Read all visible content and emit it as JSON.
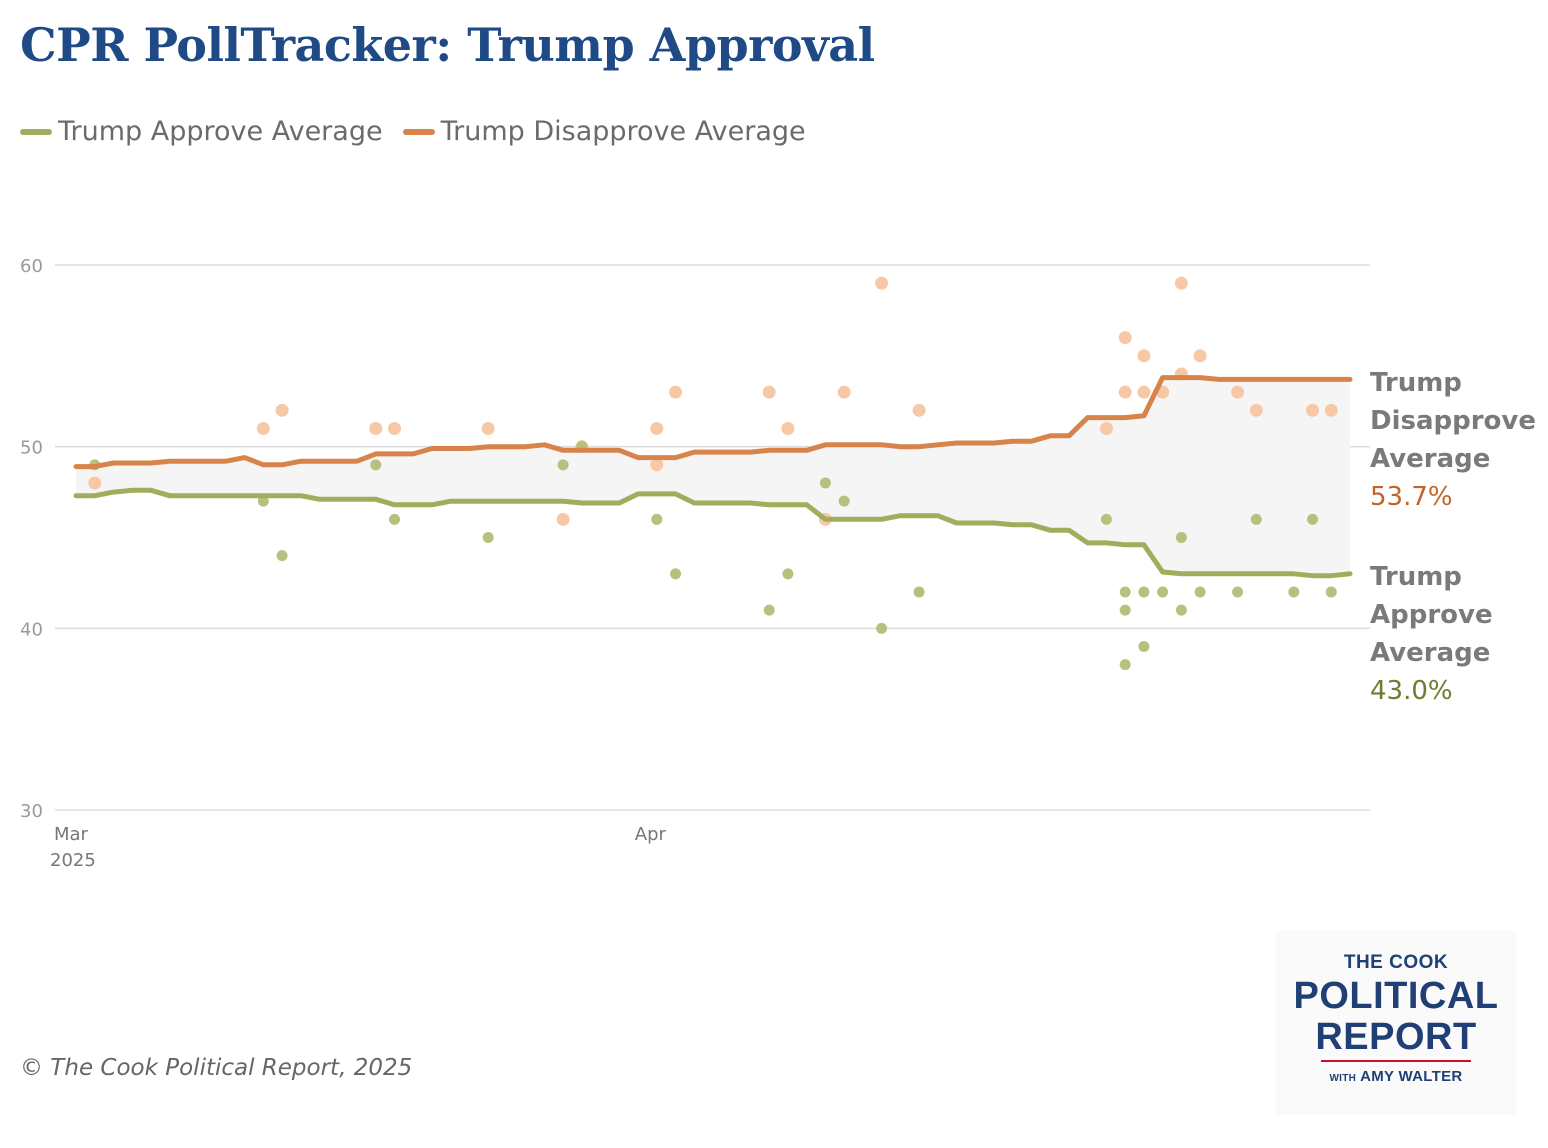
{
  "title": "CPR PollTracker: Trump Approval",
  "footer": "© The Cook Political Report, 2025",
  "logo": {
    "line1": "THE COOK",
    "line2": "POLITICAL",
    "line3": "REPORT",
    "with": "WITH",
    "name": "AMY WALTER"
  },
  "colors": {
    "approve": "#a0ad5d",
    "disapprove": "#d7834a",
    "approve_point": "#b7c17e",
    "disapprove_point": "#f7c8a5",
    "band": "#f5f5f5",
    "grid": "#dddddd",
    "title": "#1f4a86"
  },
  "end_labels": {
    "disapprove": {
      "name": "Trump Disapprove Average",
      "value": "53.7%"
    },
    "approve": {
      "name": "Trump Approve Average",
      "value": "43.0%"
    }
  },
  "chart_data": {
    "type": "line",
    "title": "CPR PollTracker: Trump Approval",
    "x_axis": {
      "ticks": [
        {
          "label": "Mar",
          "sublabel": "2025",
          "date": "2025-03-01"
        },
        {
          "label": "Apr",
          "date": "2025-04-01"
        }
      ],
      "range": [
        "2025-03-01",
        "2025-05-08"
      ]
    },
    "y_axis": {
      "ticks": [
        30,
        40,
        50,
        60
      ],
      "range": [
        30,
        60
      ]
    },
    "grid": true,
    "legend": "top-left",
    "series": [
      {
        "name": "Trump Approve Average",
        "x": [
          "2025-03-01",
          "2025-03-02",
          "2025-03-03",
          "2025-03-04",
          "2025-03-05",
          "2025-03-06",
          "2025-03-07",
          "2025-03-08",
          "2025-03-09",
          "2025-03-10",
          "2025-03-11",
          "2025-03-12",
          "2025-03-13",
          "2025-03-14",
          "2025-03-15",
          "2025-03-16",
          "2025-03-17",
          "2025-03-18",
          "2025-03-19",
          "2025-03-20",
          "2025-03-21",
          "2025-03-22",
          "2025-03-23",
          "2025-03-24",
          "2025-03-25",
          "2025-03-26",
          "2025-03-27",
          "2025-03-28",
          "2025-03-29",
          "2025-03-30",
          "2025-03-31",
          "2025-04-01",
          "2025-04-02",
          "2025-04-03",
          "2025-04-04",
          "2025-04-05",
          "2025-04-06",
          "2025-04-07",
          "2025-04-08",
          "2025-04-09",
          "2025-04-10",
          "2025-04-11",
          "2025-04-12",
          "2025-04-13",
          "2025-04-14",
          "2025-04-15",
          "2025-04-16",
          "2025-04-17",
          "2025-04-18",
          "2025-04-19",
          "2025-04-20",
          "2025-04-21",
          "2025-04-22",
          "2025-04-23",
          "2025-04-24",
          "2025-04-25",
          "2025-04-26",
          "2025-04-27",
          "2025-04-28",
          "2025-04-29",
          "2025-04-30",
          "2025-05-01",
          "2025-05-02",
          "2025-05-03",
          "2025-05-04",
          "2025-05-05",
          "2025-05-06",
          "2025-05-07",
          "2025-05-08"
        ],
        "values": [
          47.3,
          47.3,
          47.5,
          47.6,
          47.6,
          47.3,
          47.3,
          47.3,
          47.3,
          47.3,
          47.3,
          47.3,
          47.3,
          47.1,
          47.1,
          47.1,
          47.1,
          46.8,
          46.8,
          46.8,
          47.0,
          47.0,
          47.0,
          47.0,
          47.0,
          47.0,
          47.0,
          46.9,
          46.9,
          46.9,
          47.4,
          47.4,
          47.4,
          46.9,
          46.9,
          46.9,
          46.9,
          46.8,
          46.8,
          46.8,
          46.0,
          46.0,
          46.0,
          46.0,
          46.2,
          46.2,
          46.2,
          45.8,
          45.8,
          45.8,
          45.7,
          45.7,
          45.4,
          45.4,
          44.7,
          44.7,
          44.6,
          44.6,
          43.1,
          43.0,
          43.0,
          43.0,
          43.0,
          43.0,
          43.0,
          43.0,
          42.9,
          42.9,
          43.0
        ]
      },
      {
        "name": "Trump Disapprove Average",
        "x": [
          "2025-03-01",
          "2025-03-02",
          "2025-03-03",
          "2025-03-04",
          "2025-03-05",
          "2025-03-06",
          "2025-03-07",
          "2025-03-08",
          "2025-03-09",
          "2025-03-10",
          "2025-03-11",
          "2025-03-12",
          "2025-03-13",
          "2025-03-14",
          "2025-03-15",
          "2025-03-16",
          "2025-03-17",
          "2025-03-18",
          "2025-03-19",
          "2025-03-20",
          "2025-03-21",
          "2025-03-22",
          "2025-03-23",
          "2025-03-24",
          "2025-03-25",
          "2025-03-26",
          "2025-03-27",
          "2025-03-28",
          "2025-03-29",
          "2025-03-30",
          "2025-03-31",
          "2025-04-01",
          "2025-04-02",
          "2025-04-03",
          "2025-04-04",
          "2025-04-05",
          "2025-04-06",
          "2025-04-07",
          "2025-04-08",
          "2025-04-09",
          "2025-04-10",
          "2025-04-11",
          "2025-04-12",
          "2025-04-13",
          "2025-04-14",
          "2025-04-15",
          "2025-04-16",
          "2025-04-17",
          "2025-04-18",
          "2025-04-19",
          "2025-04-20",
          "2025-04-21",
          "2025-04-22",
          "2025-04-23",
          "2025-04-24",
          "2025-04-25",
          "2025-04-26",
          "2025-04-27",
          "2025-04-28",
          "2025-04-29",
          "2025-04-30",
          "2025-05-01",
          "2025-05-02",
          "2025-05-03",
          "2025-05-04",
          "2025-05-05",
          "2025-05-06",
          "2025-05-07",
          "2025-05-08"
        ],
        "values": [
          48.9,
          48.9,
          49.1,
          49.1,
          49.1,
          49.2,
          49.2,
          49.2,
          49.2,
          49.4,
          49.0,
          49.0,
          49.2,
          49.2,
          49.2,
          49.2,
          49.6,
          49.6,
          49.6,
          49.9,
          49.9,
          49.9,
          50.0,
          50.0,
          50.0,
          50.1,
          49.8,
          49.8,
          49.8,
          49.8,
          49.4,
          49.4,
          49.4,
          49.7,
          49.7,
          49.7,
          49.7,
          49.8,
          49.8,
          49.8,
          50.1,
          50.1,
          50.1,
          50.1,
          50.0,
          50.0,
          50.1,
          50.2,
          50.2,
          50.2,
          50.3,
          50.3,
          50.6,
          50.6,
          51.6,
          51.6,
          51.6,
          51.7,
          53.8,
          53.8,
          53.8,
          53.7,
          53.7,
          53.7,
          53.7,
          53.7,
          53.7,
          53.7,
          53.7
        ]
      },
      {
        "name": "Approve polls",
        "type": "scatter",
        "x": [
          "2025-03-02",
          "2025-03-11",
          "2025-03-12",
          "2025-03-17",
          "2025-03-18",
          "2025-03-23",
          "2025-03-27",
          "2025-03-28",
          "2025-04-01",
          "2025-04-01",
          "2025-04-02",
          "2025-04-07",
          "2025-04-08",
          "2025-04-10",
          "2025-04-11",
          "2025-04-13",
          "2025-04-15",
          "2025-04-25",
          "2025-04-26",
          "2025-04-26",
          "2025-04-26",
          "2025-04-27",
          "2025-04-27",
          "2025-04-28",
          "2025-04-29",
          "2025-04-29",
          "2025-04-30",
          "2025-05-02",
          "2025-05-03",
          "2025-05-05",
          "2025-05-06",
          "2025-05-07"
        ],
        "values": [
          49,
          47,
          44,
          49,
          46,
          45,
          49,
          50,
          46,
          46,
          43,
          41,
          43,
          48,
          47,
          40,
          42,
          46,
          42,
          38,
          41,
          39,
          42,
          42,
          41,
          45,
          42,
          42,
          46,
          42,
          46,
          42
        ]
      },
      {
        "name": "Disapprove polls",
        "type": "scatter",
        "x": [
          "2025-03-02",
          "2025-03-11",
          "2025-03-12",
          "2025-03-17",
          "2025-03-18",
          "2025-03-23",
          "2025-03-27",
          "2025-03-28",
          "2025-04-01",
          "2025-04-01",
          "2025-04-02",
          "2025-04-07",
          "2025-04-08",
          "2025-04-10",
          "2025-04-11",
          "2025-04-13",
          "2025-04-15",
          "2025-04-25",
          "2025-04-26",
          "2025-04-26",
          "2025-04-27",
          "2025-04-27",
          "2025-04-28",
          "2025-04-29",
          "2025-04-29",
          "2025-04-30",
          "2025-05-02",
          "2025-05-03",
          "2025-05-06",
          "2025-05-07"
        ],
        "values": [
          48,
          51,
          52,
          51,
          51,
          51,
          46,
          50,
          51,
          49,
          53,
          53,
          51,
          46,
          53,
          59,
          52,
          51,
          53,
          56,
          55,
          53,
          53,
          59,
          54,
          55,
          53,
          52,
          52,
          52
        ]
      }
    ]
  }
}
